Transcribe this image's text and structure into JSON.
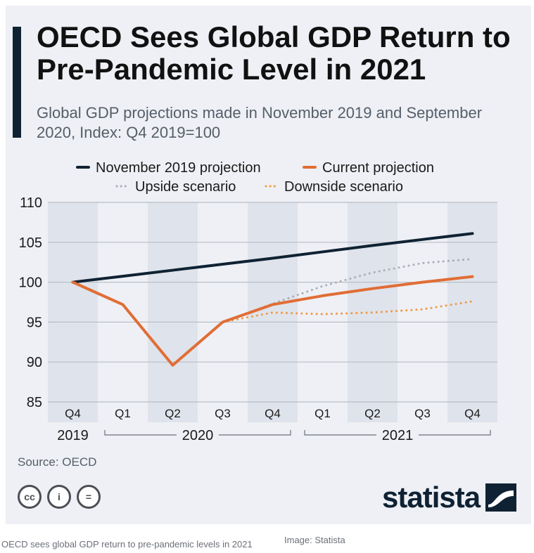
{
  "header": {
    "title": "OECD Sees Global GDP Return to Pre-Pandemic Level in 2021",
    "subtitle": "Global GDP projections made in November 2019 and September 2020, Index: Q4 2019=100"
  },
  "chart_data": {
    "type": "line",
    "categories": [
      "Q4",
      "Q1",
      "Q2",
      "Q3",
      "Q4",
      "Q1",
      "Q2",
      "Q3",
      "Q4"
    ],
    "year_groups": [
      {
        "label": "2019",
        "start": 0,
        "end": 0
      },
      {
        "label": "2020",
        "start": 1,
        "end": 4
      },
      {
        "label": "2021",
        "start": 5,
        "end": 8
      }
    ],
    "yticks": [
      85,
      90,
      95,
      100,
      105,
      110
    ],
    "ylim": [
      85,
      110
    ],
    "grid": true,
    "legend_position": "top",
    "series": [
      {
        "name": "November 2019 projection",
        "color": "#0f2233",
        "style": "solid",
        "values": [
          100,
          100.75,
          101.5,
          102.25,
          103.0,
          103.8,
          104.6,
          105.35,
          106.1
        ]
      },
      {
        "name": "Current projection",
        "color": "#e16d35",
        "style": "solid",
        "values": [
          100,
          97.2,
          89.6,
          95.0,
          97.2,
          98.3,
          99.2,
          100.0,
          100.7
        ]
      },
      {
        "name": "Upside scenario",
        "color": "#a9adb5",
        "style": "dotted",
        "values": [
          null,
          null,
          null,
          95.0,
          97.3,
          99.5,
          101.2,
          102.4,
          102.9
        ]
      },
      {
        "name": "Downside scenario",
        "color": "#ef9a45",
        "style": "dotted",
        "values": [
          null,
          null,
          null,
          95.0,
          96.2,
          96.0,
          96.2,
          96.6,
          97.6
        ]
      }
    ]
  },
  "footer": {
    "source": "Source: OECD",
    "cc_icons": [
      "cc-icon",
      "attribution-icon",
      "no-derivatives-icon"
    ],
    "cc_glyphs": [
      "cc",
      "i",
      "="
    ],
    "logo_text": "statista"
  },
  "caption": "OECD sees global GDP return to pre-pandemic levels in 2021",
  "credit": "Image: Statista"
}
